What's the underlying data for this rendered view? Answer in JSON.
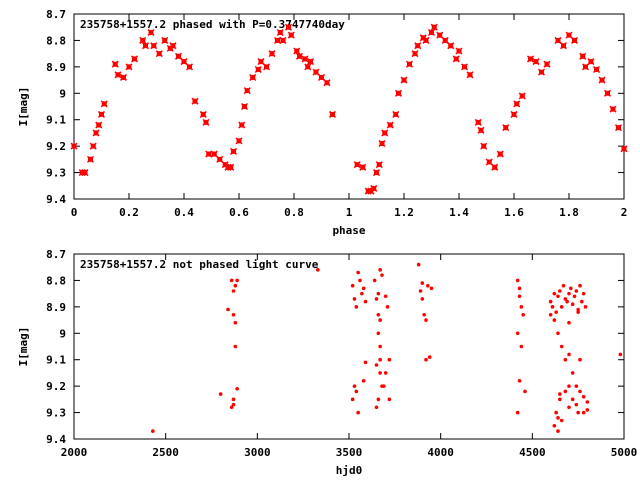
{
  "chart_data": [
    {
      "type": "scatter",
      "title": "235758+1557.2 phased with P=0.3747740day",
      "xlabel": "phase",
      "ylabel": "I[mag]",
      "xlim": [
        0,
        2
      ],
      "ylim": [
        8.7,
        9.4
      ],
      "y_inverted": true,
      "grid": false,
      "x_ticks": [
        0,
        0.2,
        0.4,
        0.6,
        0.8,
        1,
        1.2,
        1.4,
        1.6,
        1.8,
        2
      ],
      "x_tick_labels": [
        "0",
        "0.2",
        "0.4",
        "0.6",
        "0.8",
        "1",
        "1.2",
        "1.4",
        "1.6",
        "1.8",
        "2"
      ],
      "y_ticks": [
        8.7,
        8.8,
        8.9,
        9,
        9.1,
        9.2,
        9.3,
        9.4
      ],
      "y_tick_labels": [
        "8.7",
        "8.8",
        "8.9",
        "9",
        "9.1",
        "9.2",
        "9.3",
        "9.4"
      ],
      "marker_color": "#ff0000",
      "marker": "x",
      "series": [
        {
          "x": [
            0.0,
            0.03,
            0.04,
            0.06,
            0.07,
            0.08,
            0.09,
            0.1,
            0.11,
            0.15,
            0.16,
            0.18,
            0.2,
            0.22,
            0.25,
            0.26,
            0.28,
            0.29,
            0.31,
            0.33,
            0.35,
            0.36,
            0.38,
            0.4,
            0.42,
            0.44,
            0.47,
            0.48,
            0.49,
            0.51,
            0.53,
            0.55,
            0.56,
            0.57,
            0.58,
            0.6,
            0.61,
            0.62,
            0.63,
            0.65,
            0.67,
            0.68,
            0.7,
            0.72,
            0.74,
            0.75,
            0.76,
            0.78,
            0.79,
            0.81,
            0.82,
            0.84,
            0.85,
            0.86,
            0.88,
            0.9,
            0.92,
            0.94,
            1.03,
            1.05,
            1.07,
            1.08,
            1.09,
            1.1,
            1.11,
            1.12,
            1.13,
            1.15,
            1.17,
            1.18,
            1.2,
            1.22,
            1.24,
            1.25,
            1.27,
            1.28,
            1.3,
            1.31,
            1.33,
            1.35,
            1.37,
            1.39,
            1.4,
            1.42,
            1.44,
            1.47,
            1.48,
            1.49,
            1.51,
            1.53,
            1.55,
            1.57,
            1.6,
            1.61,
            1.63,
            1.66,
            1.68,
            1.7,
            1.72,
            1.76,
            1.78,
            1.8,
            1.82,
            1.85,
            1.86,
            1.88,
            1.9,
            1.92,
            1.94,
            1.96,
            1.98,
            2.0
          ],
          "y": [
            9.2,
            9.3,
            9.3,
            9.25,
            9.2,
            9.15,
            9.12,
            9.08,
            9.04,
            8.89,
            8.93,
            8.94,
            8.9,
            8.87,
            8.8,
            8.82,
            8.77,
            8.82,
            8.85,
            8.8,
            8.83,
            8.82,
            8.86,
            8.88,
            8.9,
            9.03,
            9.08,
            9.11,
            9.23,
            9.23,
            9.25,
            9.27,
            9.28,
            9.28,
            9.22,
            9.18,
            9.12,
            9.05,
            8.99,
            8.94,
            8.91,
            8.88,
            8.9,
            8.85,
            8.8,
            8.77,
            8.8,
            8.75,
            8.78,
            8.84,
            8.86,
            8.87,
            8.9,
            8.88,
            8.92,
            8.94,
            8.96,
            9.08,
            9.27,
            9.28,
            9.37,
            9.37,
            9.36,
            9.3,
            9.27,
            9.19,
            9.15,
            9.12,
            9.08,
            9.0,
            8.95,
            8.89,
            8.85,
            8.82,
            8.79,
            8.8,
            8.77,
            8.75,
            8.78,
            8.8,
            8.82,
            8.87,
            8.84,
            8.9,
            8.93,
            9.11,
            9.14,
            9.2,
            9.26,
            9.28,
            9.23,
            9.13,
            9.08,
            9.04,
            9.01,
            8.87,
            8.88,
            8.92,
            8.89,
            8.8,
            8.82,
            8.78,
            8.8,
            8.86,
            8.9,
            8.88,
            8.91,
            8.95,
            9.0,
            9.06,
            9.13,
            9.21
          ]
        }
      ]
    },
    {
      "type": "scatter",
      "title": "235758+1557.2 not phased light curve",
      "xlabel": "hjd0",
      "ylabel": "I[mag]",
      "xlim": [
        2000,
        5000
      ],
      "ylim": [
        8.7,
        9.4
      ],
      "y_inverted": true,
      "grid": false,
      "x_ticks": [
        2000,
        2500,
        3000,
        3500,
        4000,
        4500,
        5000
      ],
      "x_tick_labels": [
        "2000",
        "2500",
        "3000",
        "3500",
        "4000",
        "4500",
        "5000"
      ],
      "y_ticks": [
        8.7,
        8.8,
        8.9,
        9,
        9.1,
        9.2,
        9.3,
        9.4
      ],
      "y_tick_labels": [
        "8.7",
        "8.8",
        "8.9",
        "9",
        "9.1",
        "9.2",
        "9.3",
        "9.4"
      ],
      "marker_color": "#ff0000",
      "marker": "dot",
      "series": [
        {
          "x": [
            2430,
            2800,
            2840,
            2860,
            2870,
            2880,
            2870,
            2880,
            2890,
            2880,
            2870,
            2890,
            2860,
            2870,
            3330,
            3520,
            3530,
            3540,
            3550,
            3560,
            3570,
            3580,
            3590,
            3520,
            3530,
            3540,
            3550,
            3580,
            3590,
            3640,
            3650,
            3660,
            3660,
            3670,
            3670,
            3670,
            3680,
            3660,
            3650,
            3650,
            3670,
            3680,
            3660,
            3670,
            3690,
            3700,
            3720,
            3700,
            3710,
            3720,
            3880,
            3900,
            3890,
            3910,
            3920,
            3930,
            3900,
            3920,
            3940,
            3950,
            4420,
            4430,
            4440,
            4450,
            4420,
            4440,
            4430,
            4460,
            4420,
            4430,
            4600,
            4610,
            4620,
            4630,
            4640,
            4650,
            4660,
            4670,
            4680,
            4690,
            4700,
            4710,
            4720,
            4730,
            4740,
            4750,
            4760,
            4770,
            4780,
            4790,
            4600,
            4620,
            4640,
            4660,
            4680,
            4700,
            4720,
            4740,
            4760,
            4780,
            4650,
            4700,
            4750,
            4800,
            4620,
            4660,
            4700,
            4740,
            4780,
            4640,
            4680,
            4720,
            4760,
            4800,
            4650,
            4700,
            4750,
            4630,
            4640,
            4980
          ],
          "y": [
            9.37,
            9.23,
            8.91,
            8.8,
            8.93,
            8.96,
            8.84,
            8.82,
            8.8,
            9.05,
            9.27,
            9.21,
            9.28,
            9.25,
            8.76,
            8.82,
            8.87,
            8.9,
            8.77,
            8.8,
            8.85,
            8.83,
            8.88,
            9.25,
            9.2,
            9.22,
            9.3,
            9.18,
            9.11,
            8.8,
            8.87,
            8.93,
            9.0,
            9.05,
            9.1,
            9.15,
            9.2,
            9.25,
            9.28,
            9.12,
            8.76,
            8.78,
            8.85,
            8.95,
            9.2,
            9.15,
            9.1,
            8.86,
            8.9,
            9.25,
            8.74,
            8.81,
            8.84,
            8.93,
            8.95,
            8.82,
            8.87,
            9.1,
            9.09,
            8.83,
            8.8,
            8.83,
            8.9,
            8.93,
            9.0,
            9.05,
            9.18,
            9.22,
            9.3,
            8.86,
            8.88,
            8.9,
            8.85,
            8.92,
            8.86,
            8.84,
            8.9,
            8.82,
            8.87,
            8.88,
            8.85,
            8.83,
            8.89,
            8.86,
            8.84,
            8.92,
            8.82,
            8.88,
            8.85,
            8.9,
            8.93,
            8.95,
            9.0,
            9.05,
            9.1,
            9.08,
            9.15,
            9.2,
            9.22,
            9.24,
            9.25,
            9.28,
            9.3,
            9.26,
            9.35,
            9.33,
            9.2,
            9.27,
            9.3,
            9.37,
            9.22,
            9.25,
            9.1,
            9.29,
            9.23,
            8.96,
            8.91,
            9.3,
            9.32,
            9.08
          ]
        }
      ]
    }
  ]
}
